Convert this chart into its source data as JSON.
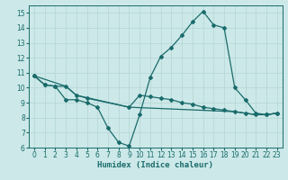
{
  "title": "",
  "xlabel": "Humidex (Indice chaleur)",
  "ylabel": "",
  "xlim": [
    -0.5,
    23.5
  ],
  "ylim": [
    6,
    15.5
  ],
  "xticks": [
    0,
    1,
    2,
    3,
    4,
    5,
    6,
    7,
    8,
    9,
    10,
    11,
    12,
    13,
    14,
    15,
    16,
    17,
    18,
    19,
    20,
    21,
    22,
    23
  ],
  "yticks": [
    6,
    7,
    8,
    9,
    10,
    11,
    12,
    13,
    14,
    15
  ],
  "bg_color": "#cce8e8",
  "line_color": "#1a6b6b",
  "grid_color": "#b8d8d8",
  "line1_x": [
    0,
    1,
    2,
    3,
    4,
    5,
    6,
    7,
    8,
    9,
    10,
    11,
    12,
    13,
    14,
    15,
    16,
    17,
    18,
    19,
    20,
    21,
    22,
    23
  ],
  "line1_y": [
    10.8,
    10.2,
    10.1,
    9.2,
    9.2,
    9.0,
    8.7,
    7.3,
    6.35,
    6.1,
    8.2,
    10.7,
    12.1,
    12.7,
    13.5,
    14.4,
    15.1,
    14.2,
    14.0,
    10.0,
    9.2,
    8.3,
    8.2,
    8.3
  ],
  "line2_x": [
    0,
    1,
    2,
    3,
    4,
    5,
    9,
    10,
    11,
    12,
    13,
    14,
    15,
    16,
    17,
    18,
    19,
    20,
    21,
    22,
    23
  ],
  "line2_y": [
    10.8,
    10.2,
    10.1,
    10.1,
    9.5,
    9.3,
    8.7,
    9.5,
    9.4,
    9.3,
    9.2,
    9.0,
    8.9,
    8.7,
    8.6,
    8.5,
    8.4,
    8.3,
    8.2,
    8.2,
    8.3
  ],
  "line3_x": [
    0,
    3,
    4,
    9,
    19,
    20,
    21,
    22,
    23
  ],
  "line3_y": [
    10.8,
    10.1,
    9.5,
    8.7,
    8.4,
    8.3,
    8.2,
    8.2,
    8.3
  ],
  "xlabel_fontsize": 6.5,
  "tick_fontsize": 5.5,
  "lw": 0.9,
  "ms": 2.0
}
